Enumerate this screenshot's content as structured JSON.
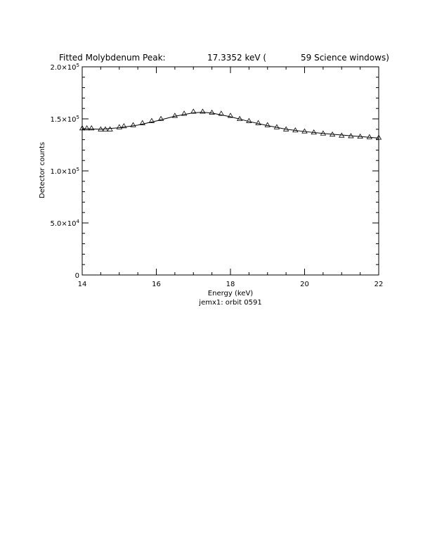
{
  "chart_data": {
    "type": "scatter",
    "title": {
      "prefix": "Fitted Molybdenum Peak:",
      "energy": "17.3352 keV (",
      "windows": "59 Science windows)"
    },
    "xlabel": "Energy (keV)",
    "subtitle": "jemx1: orbit 0591",
    "ylabel": "Detector counts",
    "xlim": [
      14,
      22
    ],
    "ylim": [
      0,
      200000
    ],
    "x_ticks": [
      {
        "value": 14,
        "label": "14"
      },
      {
        "value": 16,
        "label": "16"
      },
      {
        "value": 18,
        "label": "18"
      },
      {
        "value": 20,
        "label": "20"
      },
      {
        "value": 22,
        "label": "22"
      }
    ],
    "y_ticks": [
      {
        "value": 0,
        "mantissa": "0",
        "exponent": ""
      },
      {
        "value": 50000,
        "mantissa": "5.0×10",
        "exponent": "4"
      },
      {
        "value": 100000,
        "mantissa": "1.0×10",
        "exponent": "5"
      },
      {
        "value": 150000,
        "mantissa": "1.5×10",
        "exponent": "5"
      },
      {
        "value": 200000,
        "mantissa": "2.0×10",
        "exponent": "5"
      }
    ],
    "grid": false,
    "series": [
      {
        "marker": "triangle-open",
        "x": [
          14.0,
          14.125,
          14.25,
          14.5,
          14.625,
          14.75,
          15.0,
          15.125,
          15.375,
          15.625,
          15.875,
          16.125,
          16.5,
          16.75,
          17.0,
          17.25,
          17.5,
          17.75,
          18.0,
          18.25,
          18.5,
          18.75,
          19.0,
          19.25,
          19.5,
          19.75,
          20.0,
          20.25,
          20.5,
          20.75,
          21.0,
          21.25,
          21.5,
          21.75,
          22.0
        ],
        "y": [
          141000,
          141000,
          141000,
          140000,
          140000,
          140000,
          142000,
          143000,
          144000,
          146000,
          148000,
          150000,
          153000,
          155000,
          157000,
          157000,
          156000,
          155000,
          153000,
          150000,
          148000,
          146000,
          144000,
          142000,
          140000,
          139000,
          138000,
          137000,
          136000,
          135000,
          134000,
          133500,
          133000,
          132500,
          132000
        ]
      },
      {
        "marker": "line",
        "x": [
          14.0,
          14.5,
          15.0,
          15.5,
          16.0,
          16.5,
          17.0,
          17.25,
          17.5,
          18.0,
          18.5,
          19.0,
          19.5,
          20.0,
          20.5,
          21.0,
          21.5,
          22.0
        ],
        "y": [
          140500,
          140000,
          141500,
          144000,
          148000,
          152500,
          155800,
          156300,
          155600,
          152000,
          147500,
          143500,
          140000,
          137800,
          136000,
          134500,
          133000,
          131500
        ]
      }
    ]
  }
}
